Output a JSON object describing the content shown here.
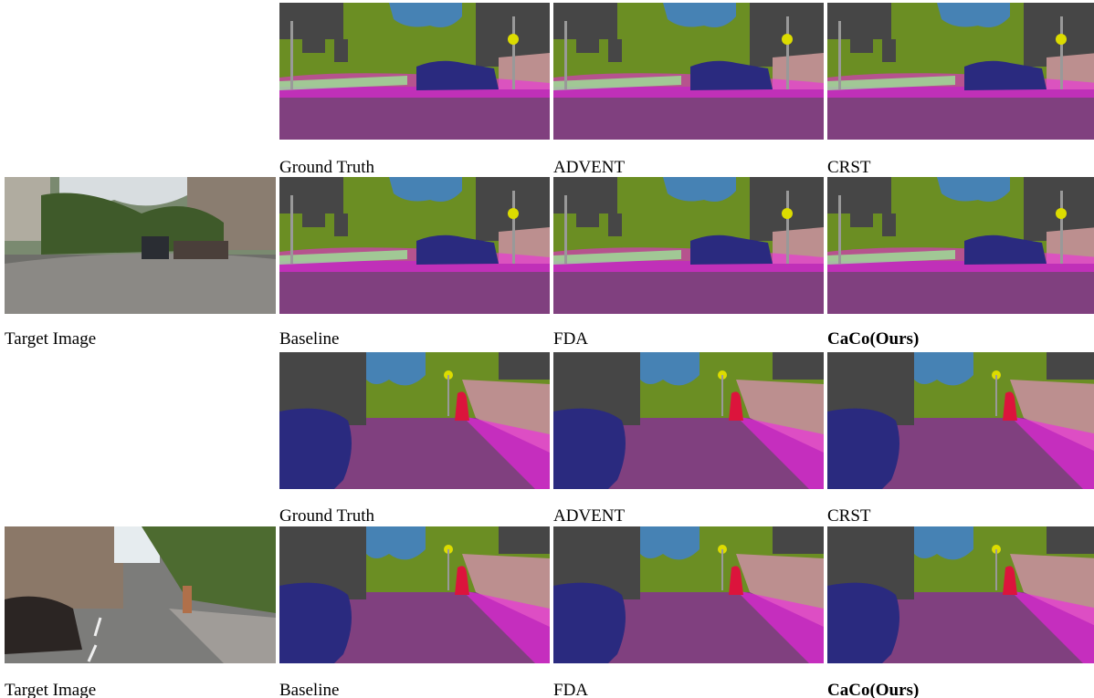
{
  "groups": [
    {
      "top_labels": [
        "Ground Truth",
        "ADVENT",
        "CRST"
      ],
      "bottom_labels": [
        "Baseline",
        "FDA",
        "CaCo(Ours)"
      ],
      "target_label": "Target Image"
    },
    {
      "top_labels": [
        "Ground Truth",
        "ADVENT",
        "CRST"
      ],
      "bottom_labels": [
        "Baseline",
        "FDA",
        "CaCo(Ours)"
      ],
      "target_label": "Target Image"
    }
  ]
}
